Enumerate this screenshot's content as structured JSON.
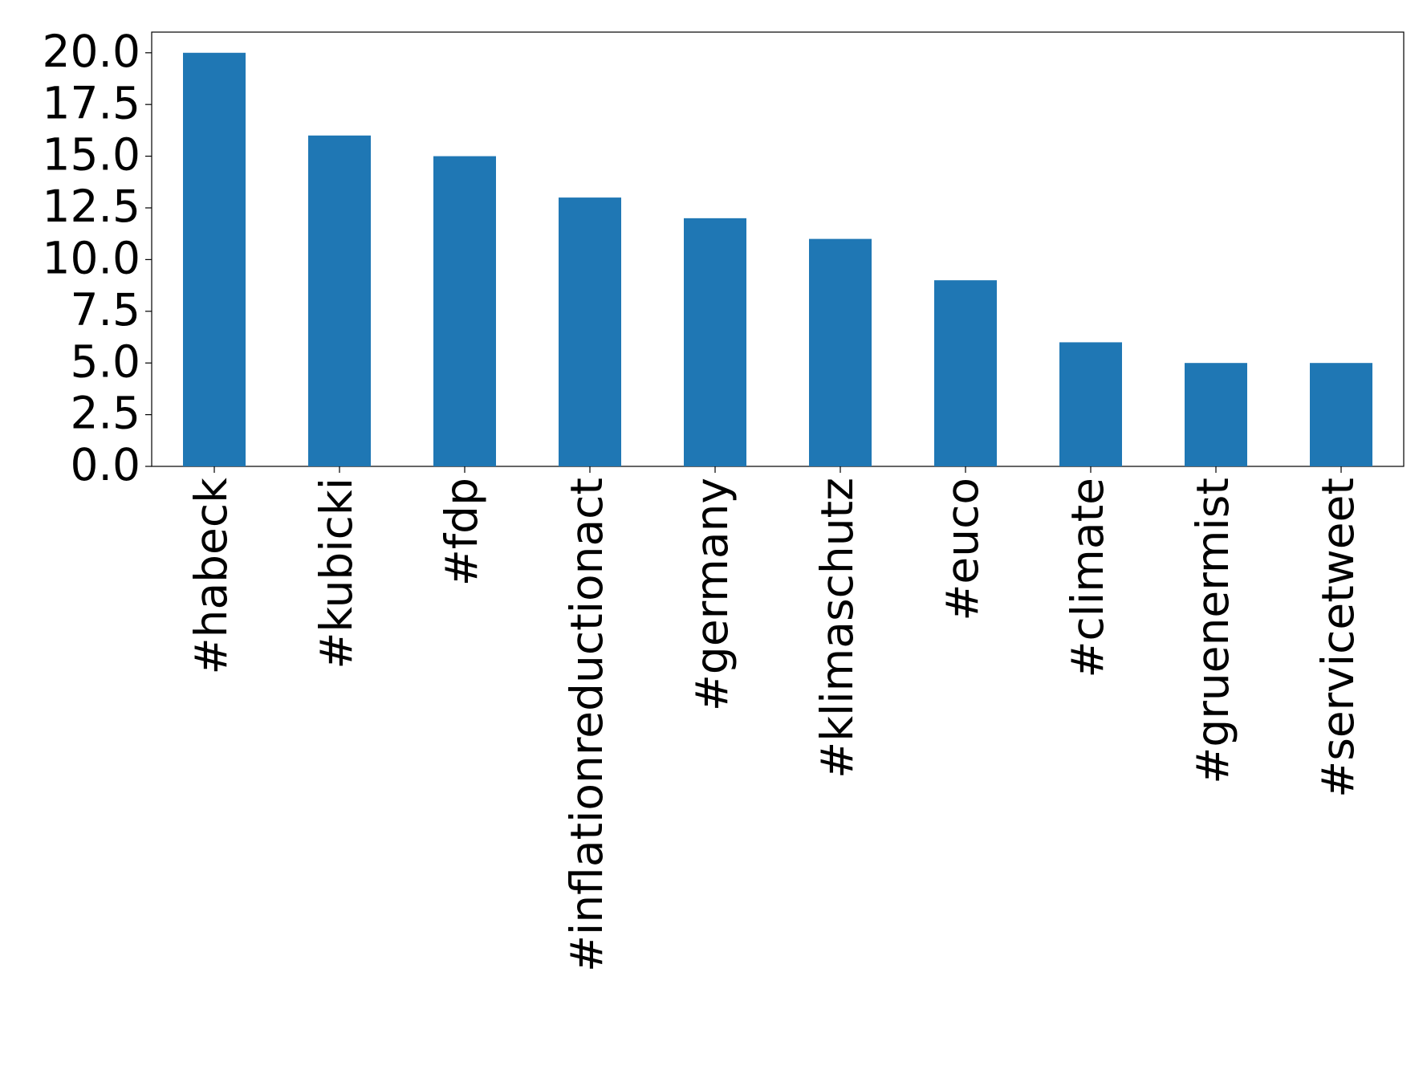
{
  "chart_data": {
    "type": "bar",
    "categories": [
      "#habeck",
      "#kubicki",
      "#fdp",
      "#inflationreductionact",
      "#germany",
      "#klimaschutz",
      "#euco",
      "#climate",
      "#gruenermist",
      "#servicetweet"
    ],
    "values": [
      20,
      16,
      15,
      13,
      12,
      11,
      9,
      6,
      5,
      5
    ],
    "color": "#1f77b4",
    "ylim": [
      0,
      21
    ],
    "yticks": [
      {
        "value": 0,
        "label": "0.0"
      },
      2.5,
      {
        "value": 5,
        "label": "5.0"
      },
      7.5,
      {
        "value": 10,
        "label": "10.0"
      },
      12.5,
      {
        "value": 15,
        "label": "15.0"
      },
      17.5,
      {
        "value": 20,
        "label": "20.0"
      }
    ],
    "grid": false
  }
}
